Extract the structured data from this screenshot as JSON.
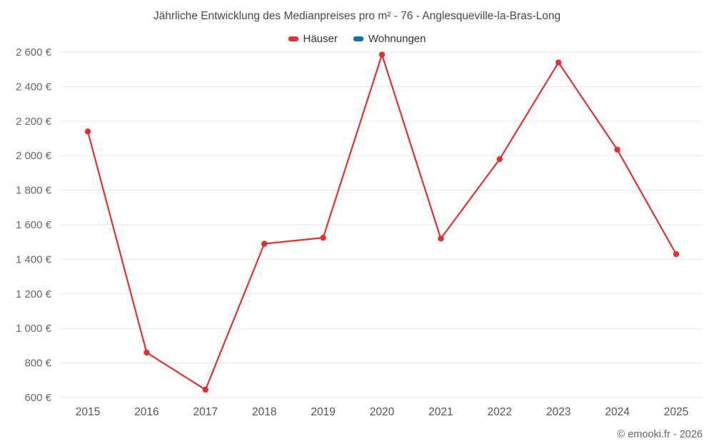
{
  "title": "Jährliche Entwicklung des Medianpreises pro m² - 76 - Anglesqueville-la-Bras-Long",
  "legend": {
    "items": [
      {
        "label": "Häuser",
        "color": "#e03131"
      },
      {
        "label": "Wohnungen",
        "color": "#1a6ca8"
      }
    ]
  },
  "footer": {
    "copyright": "© emooki.fr - 2026"
  },
  "chart_data": {
    "type": "line",
    "title": "Jährliche Entwicklung des Medianpreises pro m² - 76 - Anglesqueville-la-Bras-Long",
    "categories": [
      "2015",
      "2016",
      "2017",
      "2018",
      "2019",
      "2020",
      "2021",
      "2022",
      "2023",
      "2024",
      "2025"
    ],
    "series": [
      {
        "name": "Häuser",
        "color": "#e03131",
        "values": [
          2140,
          860,
          645,
          1490,
          1525,
          2585,
          1520,
          1980,
          2540,
          2035,
          1430
        ]
      },
      {
        "name": "Wohnungen",
        "color": "#1a6ca8",
        "values": []
      }
    ],
    "xlabel": "",
    "ylabel": "",
    "ylim": [
      600,
      2600
    ],
    "ytick_step": 200,
    "ytick_suffix": " €",
    "grid": true,
    "grid_color": "#e6e6e6",
    "legend_position": "top"
  }
}
